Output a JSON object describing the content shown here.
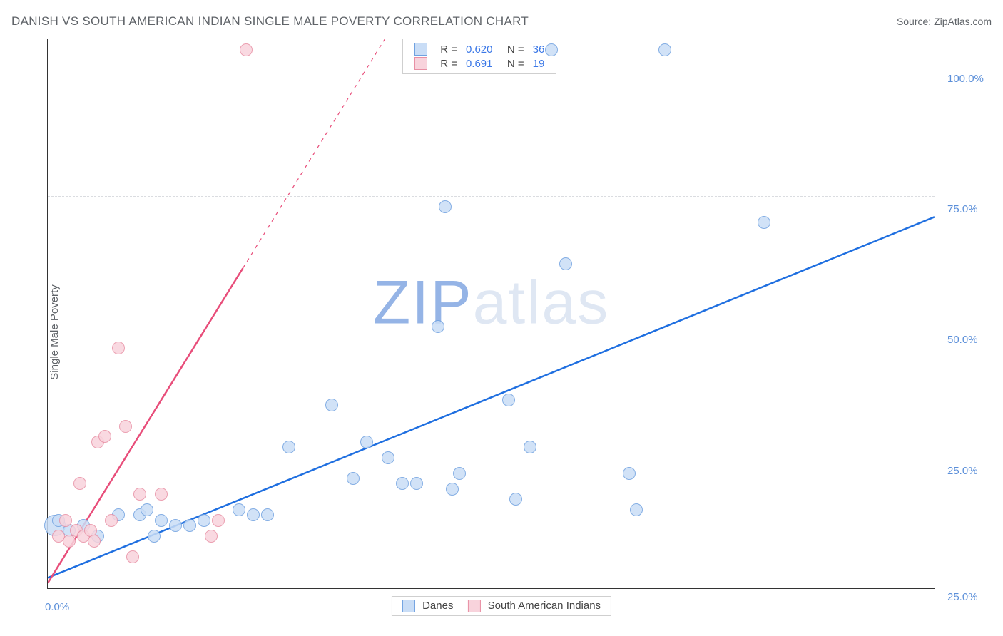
{
  "title": "DANISH VS SOUTH AMERICAN INDIAN SINGLE MALE POVERTY CORRELATION CHART",
  "source_label": "Source: ZipAtlas.com",
  "ylabel": "Single Male Poverty",
  "watermark_prefix": "ZIP",
  "watermark_suffix": "atlas",
  "chart": {
    "type": "scatter",
    "x_domain": [
      0,
      25
    ],
    "y_domain": [
      0,
      105
    ],
    "x_ticks": [
      {
        "v": 0,
        "label": "0.0%"
      },
      {
        "v": 25,
        "label": "25.0%"
      }
    ],
    "y_ticks": [
      {
        "v": 25,
        "label": "25.0%"
      },
      {
        "v": 50,
        "label": "50.0%"
      },
      {
        "v": 75,
        "label": "75.0%"
      },
      {
        "v": 100,
        "label": "100.0%"
      }
    ],
    "grid_color": "#dadce0",
    "axis_color": "#333333",
    "background_color": "#ffffff",
    "series": [
      {
        "name": "Danes",
        "r_value": "0.620",
        "n_value": "36",
        "marker_fill": "#c9ddf6",
        "marker_stroke": "#6fa1e0",
        "trend_color": "#1f6fe0",
        "trend_width": 2.5,
        "trend_start": [
          0,
          2
        ],
        "trend_end": [
          25,
          71
        ],
        "trend_dash_from_x": null,
        "points": [
          {
            "x": 0.2,
            "y": 12,
            "big": true
          },
          {
            "x": 0.3,
            "y": 13
          },
          {
            "x": 0.6,
            "y": 11
          },
          {
            "x": 1.0,
            "y": 12
          },
          {
            "x": 1.4,
            "y": 10
          },
          {
            "x": 2.0,
            "y": 14
          },
          {
            "x": 2.6,
            "y": 14
          },
          {
            "x": 2.8,
            "y": 15
          },
          {
            "x": 3.0,
            "y": 10
          },
          {
            "x": 3.2,
            "y": 13
          },
          {
            "x": 3.6,
            "y": 12
          },
          {
            "x": 4.0,
            "y": 12
          },
          {
            "x": 4.4,
            "y": 13
          },
          {
            "x": 5.4,
            "y": 15
          },
          {
            "x": 5.8,
            "y": 14
          },
          {
            "x": 6.2,
            "y": 14
          },
          {
            "x": 6.8,
            "y": 27
          },
          {
            "x": 8.0,
            "y": 35
          },
          {
            "x": 8.6,
            "y": 21
          },
          {
            "x": 9.0,
            "y": 28
          },
          {
            "x": 9.6,
            "y": 25
          },
          {
            "x": 10.0,
            "y": 20
          },
          {
            "x": 10.4,
            "y": 20
          },
          {
            "x": 11.0,
            "y": 50
          },
          {
            "x": 11.2,
            "y": 73
          },
          {
            "x": 11.4,
            "y": 19
          },
          {
            "x": 11.6,
            "y": 22
          },
          {
            "x": 13.0,
            "y": 36
          },
          {
            "x": 13.2,
            "y": 17
          },
          {
            "x": 13.6,
            "y": 27
          },
          {
            "x": 14.2,
            "y": 103
          },
          {
            "x": 14.6,
            "y": 62
          },
          {
            "x": 16.4,
            "y": 22
          },
          {
            "x": 16.6,
            "y": 15
          },
          {
            "x": 17.4,
            "y": 103
          },
          {
            "x": 20.2,
            "y": 70
          }
        ]
      },
      {
        "name": "South American Indians",
        "r_value": "0.691",
        "n_value": "19",
        "marker_fill": "#f8d3dc",
        "marker_stroke": "#e88fa4",
        "trend_color": "#e84d7a",
        "trend_width": 2.5,
        "trend_start": [
          0,
          1
        ],
        "trend_end": [
          9.5,
          105
        ],
        "trend_dash_from_x": 5.5,
        "points": [
          {
            "x": 0.3,
            "y": 10
          },
          {
            "x": 0.5,
            "y": 13
          },
          {
            "x": 0.6,
            "y": 9
          },
          {
            "x": 0.8,
            "y": 11
          },
          {
            "x": 0.9,
            "y": 20
          },
          {
            "x": 1.0,
            "y": 10
          },
          {
            "x": 1.2,
            "y": 11
          },
          {
            "x": 1.3,
            "y": 9
          },
          {
            "x": 1.4,
            "y": 28
          },
          {
            "x": 1.6,
            "y": 29
          },
          {
            "x": 1.8,
            "y": 13
          },
          {
            "x": 2.0,
            "y": 46
          },
          {
            "x": 2.2,
            "y": 31
          },
          {
            "x": 2.4,
            "y": 6
          },
          {
            "x": 2.6,
            "y": 18
          },
          {
            "x": 3.2,
            "y": 18
          },
          {
            "x": 4.6,
            "y": 10
          },
          {
            "x": 4.8,
            "y": 13
          },
          {
            "x": 5.6,
            "y": 103
          }
        ]
      }
    ]
  },
  "legend_series_labels": [
    "Danes",
    "South American Indians"
  ]
}
